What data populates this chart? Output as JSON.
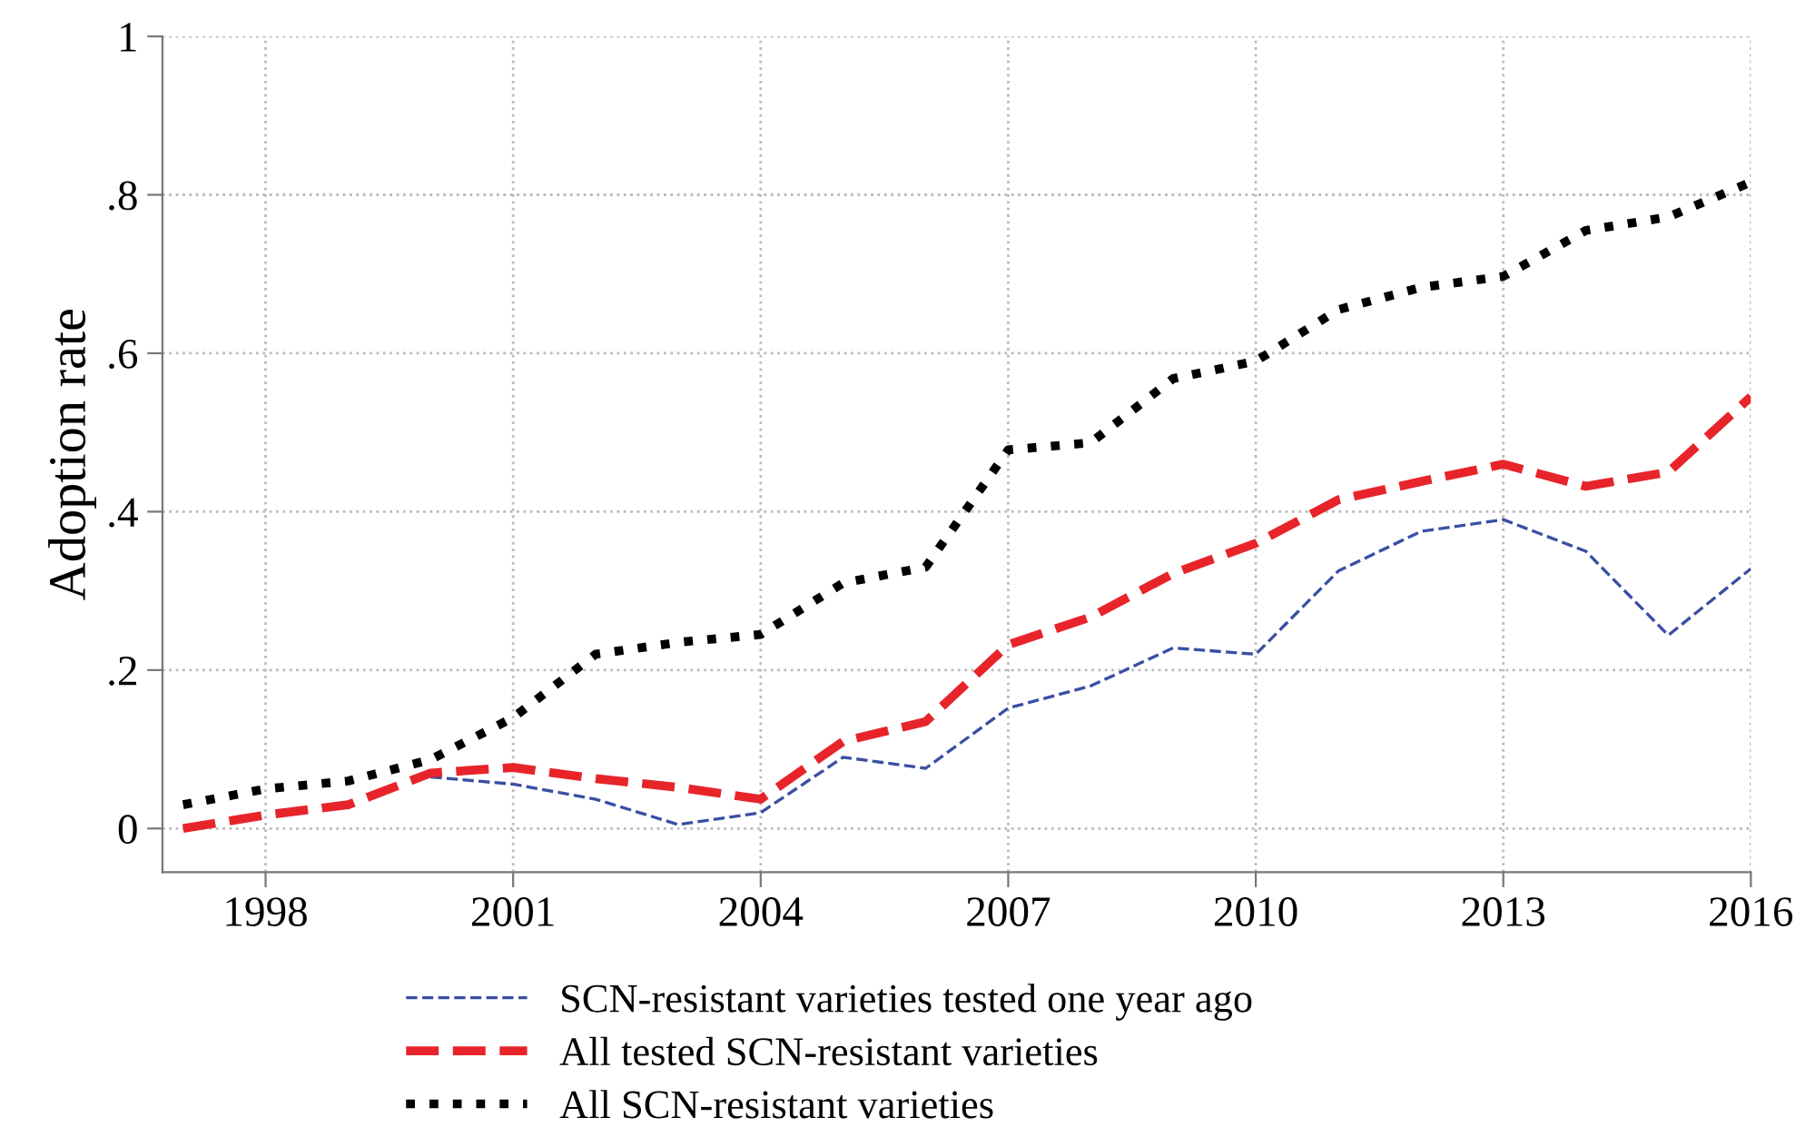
{
  "chart_data": {
    "type": "line",
    "ylabel": "Adoption rate",
    "x": [
      1997,
      1998,
      1999,
      2000,
      2001,
      2002,
      2003,
      2004,
      2005,
      2006,
      2007,
      2008,
      2009,
      2010,
      2011,
      2012,
      2013,
      2014,
      2015,
      2016
    ],
    "series": [
      {
        "name": "SCN-resistant varieties tested one year ago",
        "color": "#3a4fa3",
        "line_style": "dashed",
        "values": [
          null,
          null,
          null,
          0.065,
          0.056,
          0.037,
          0.005,
          0.02,
          0.09,
          0.076,
          0.152,
          0.18,
          0.228,
          0.22,
          0.325,
          0.375,
          0.39,
          0.35,
          0.244,
          0.328
        ]
      },
      {
        "name": "All tested SCN-resistant varieties",
        "color": "#e8242b",
        "line_style": "dashed",
        "values": [
          0.0,
          0.017,
          0.03,
          0.07,
          0.077,
          0.063,
          0.052,
          0.037,
          0.11,
          0.135,
          0.232,
          0.267,
          0.322,
          0.36,
          0.415,
          0.438,
          0.46,
          0.432,
          0.45,
          0.545
        ]
      },
      {
        "name": "All SCN-resistant varieties",
        "color": "#000000",
        "line_style": "dotted",
        "values": [
          0.03,
          0.05,
          0.06,
          0.087,
          0.14,
          0.22,
          0.235,
          0.245,
          0.31,
          0.33,
          0.478,
          0.487,
          0.568,
          0.59,
          0.655,
          0.683,
          0.697,
          0.755,
          0.772,
          0.816
        ]
      }
    ],
    "xlim": [
      1996.75,
      2016
    ],
    "xticks": [
      1998,
      2001,
      2004,
      2007,
      2010,
      2013,
      2016
    ],
    "ylim": [
      -0.055,
      1
    ],
    "yticks": [
      0,
      {
        "value": 0.2,
        "label": ".2"
      },
      {
        "value": 0.4,
        "label": ".4"
      },
      {
        "value": 0.6,
        "label": ".6"
      },
      {
        "value": 0.8,
        "label": ".8"
      },
      1
    ],
    "grid": true,
    "legend": "bottom",
    "marker": "none"
  }
}
